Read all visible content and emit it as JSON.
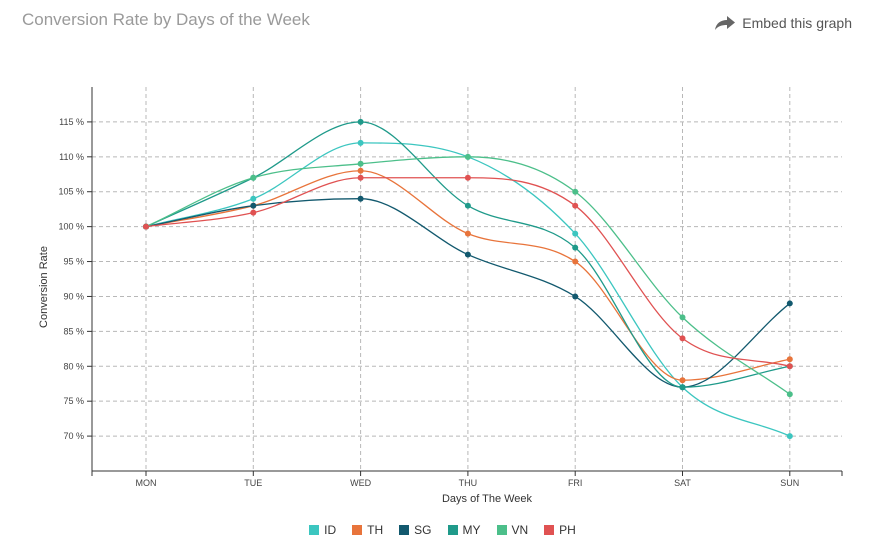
{
  "header": {
    "title": "Conversion Rate by Days of the Week",
    "embed_label": "Embed this graph"
  },
  "chart_data": {
    "type": "line",
    "categories": [
      "MON",
      "TUE",
      "WED",
      "THU",
      "FRI",
      "SAT",
      "SUN"
    ],
    "xlabel": "Days of The Week",
    "ylabel": "Conversion Rate",
    "ylim": [
      65,
      120
    ],
    "yticks": [
      70,
      75,
      80,
      85,
      90,
      95,
      100,
      105,
      110,
      115
    ],
    "tick_suffix": " %",
    "grid": true,
    "legend": "bottom-center",
    "series": [
      {
        "name": "ID",
        "color": "#3cc6c0",
        "values": [
          100,
          104,
          112,
          110,
          99,
          77,
          70
        ]
      },
      {
        "name": "TH",
        "color": "#e8743b",
        "values": [
          100,
          103,
          108,
          99,
          95,
          78,
          81
        ]
      },
      {
        "name": "SG",
        "color": "#12596e",
        "values": [
          100,
          103,
          104,
          96,
          90,
          77,
          89
        ]
      },
      {
        "name": "MY",
        "color": "#1f9a8a",
        "values": [
          100,
          107,
          115,
          103,
          97,
          77,
          80
        ]
      },
      {
        "name": "VN",
        "color": "#4cbf8a",
        "values": [
          100,
          107,
          109,
          110,
          105,
          87,
          76
        ]
      },
      {
        "name": "PH",
        "color": "#e05252",
        "values": [
          100,
          102,
          107,
          107,
          103,
          84,
          80
        ]
      }
    ]
  }
}
